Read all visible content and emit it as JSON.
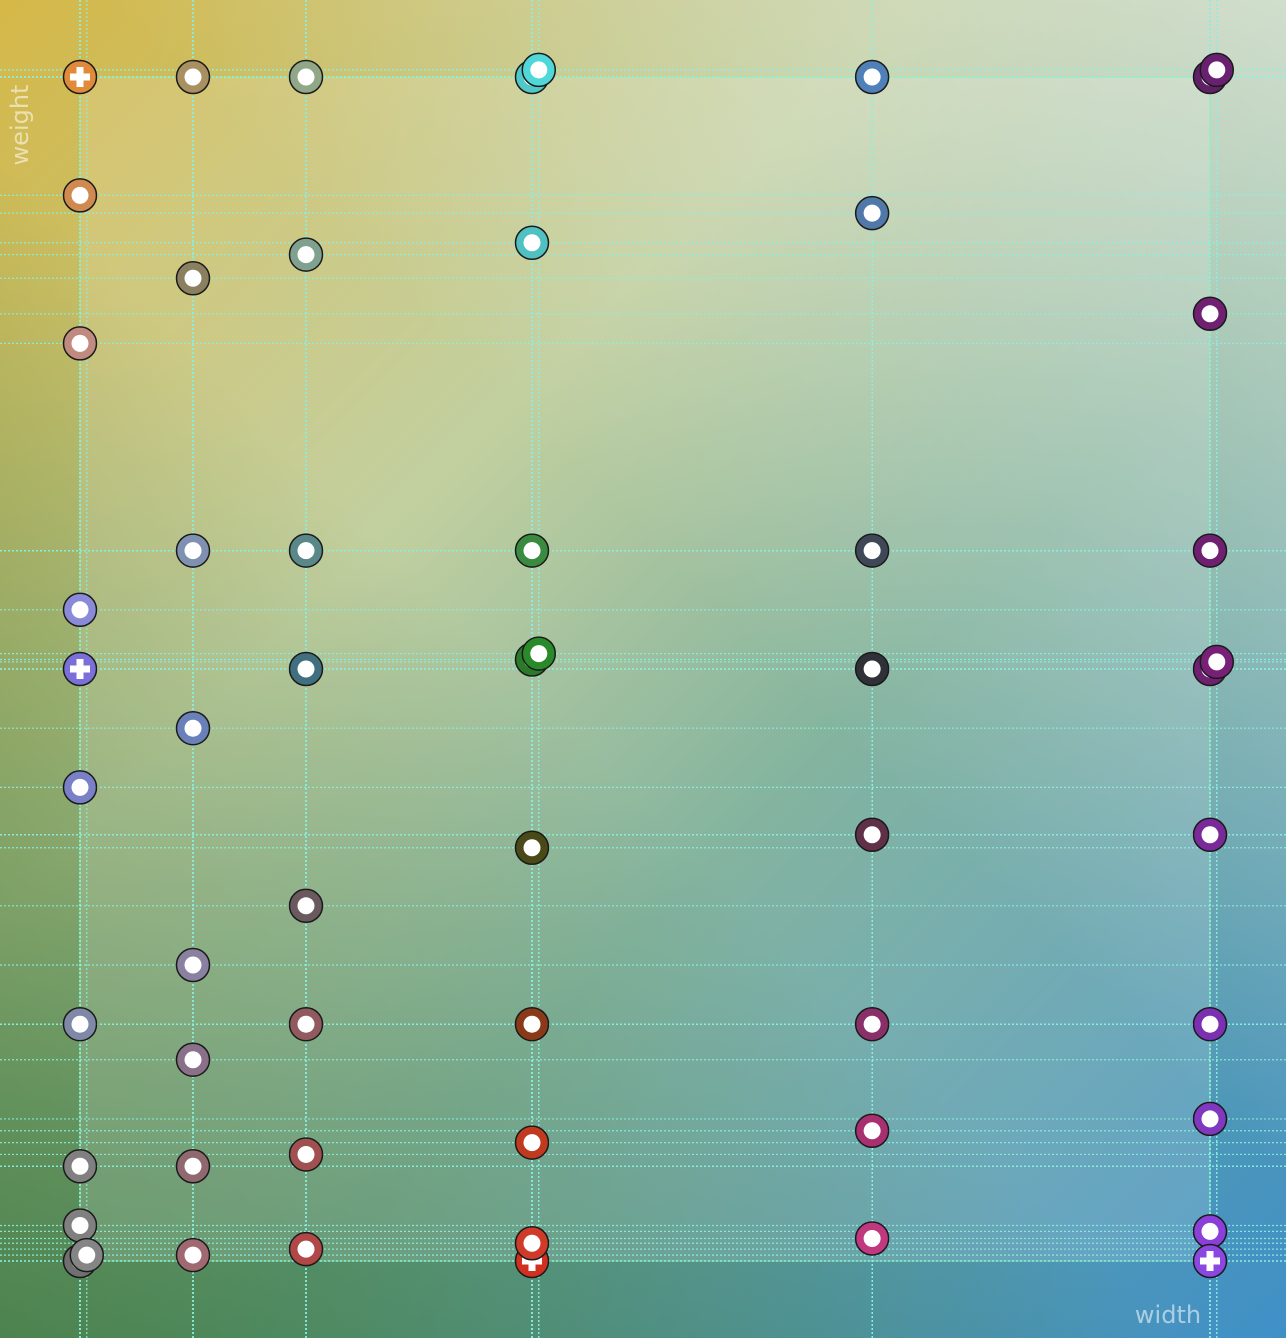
{
  "chart_data": {
    "type": "scatter",
    "x_label": "width",
    "y_label": "weight",
    "xlim": [
      0,
      1000
    ],
    "ylim": [
      0,
      1000
    ],
    "grid": true,
    "x": [
      0,
      0,
      0,
      0,
      0,
      0,
      0,
      0,
      0,
      0,
      6,
      100,
      100,
      100,
      100,
      100,
      100,
      100,
      100,
      200,
      200,
      200,
      200,
      200,
      200,
      200,
      200,
      400,
      406,
      400,
      400,
      400,
      406,
      400,
      400,
      400,
      400,
      400,
      701,
      701,
      701,
      701,
      701,
      701,
      701,
      701,
      1000,
      1006,
      1000,
      1000,
      1000,
      1006,
      1000,
      1000,
      1000,
      1000,
      1000
    ],
    "y": [
      1000,
      900,
      775,
      550,
      500,
      400,
      200,
      80,
      30,
      0,
      5,
      1000,
      830,
      600,
      450,
      250,
      170,
      80,
      5,
      1000,
      850,
      600,
      500,
      300,
      200,
      90,
      10,
      1000,
      1006,
      860,
      600,
      508,
      513,
      349,
      200,
      100,
      0,
      15,
      1000,
      885,
      600,
      500,
      360,
      200,
      110,
      19,
      1000,
      1006,
      800,
      600,
      500,
      506,
      360,
      200,
      120,
      25,
      0
    ],
    "colors": [
      "#e08a3a",
      "#d08a50",
      "#c08a80",
      "#8a8ad8",
      "#7a70d8",
      "#7a80c8",
      "#8088a8",
      "#808080",
      "#808080",
      "#707070",
      "#858585",
      "#a89060",
      "#8a8060",
      "#8090b0",
      "#6a80b8",
      "#8a80a0",
      "#8a7088",
      "#906870",
      "#a06870",
      "#90a888",
      "#80a090",
      "#5a8888",
      "#407080",
      "#6a5a60",
      "#905a60",
      "#a05050",
      "#b04848",
      "#50c8c8",
      "#50d8d8",
      "#50c0c0",
      "#3a8a40",
      "#2a7a2a",
      "#2a8a2a",
      "#4a4a18",
      "#8a3a18",
      "#c03a20",
      "#d03020",
      "#d03a28",
      "#5080b8",
      "#5078a8",
      "#404858",
      "#303038",
      "#603048",
      "#8a3068",
      "#a83070",
      "#c03880",
      "#602068",
      "#6a2070",
      "#702070",
      "#702070",
      "#702070",
      "#782078",
      "#7a2a98",
      "#7a30b0",
      "#8038c0",
      "#8a40d8",
      "#8a48e0"
    ],
    "markers": [
      "plus",
      "circle",
      "circle",
      "circle",
      "plus",
      "circle",
      "circle",
      "circle",
      "circle",
      "circle",
      "circle",
      "circle",
      "circle",
      "circle",
      "circle",
      "circle",
      "circle",
      "circle",
      "circle",
      "circle",
      "circle",
      "circle",
      "circle",
      "circle",
      "circle",
      "circle",
      "circle",
      "circle",
      "circle",
      "circle",
      "circle",
      "circle",
      "circle",
      "circle",
      "circle",
      "circle",
      "plus",
      "circle",
      "circle",
      "circle",
      "circle",
      "circle",
      "circle",
      "circle",
      "circle",
      "circle",
      "circle",
      "circle",
      "circle",
      "circle",
      "circle",
      "circle",
      "circle",
      "circle",
      "circle",
      "circle",
      "plus"
    ]
  }
}
